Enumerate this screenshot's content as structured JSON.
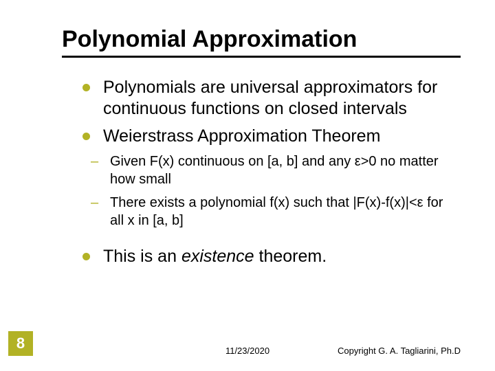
{
  "title": "Polynomial Approximation",
  "bullets": {
    "item1": "Polynomials are universal approximators for continuous functions on closed intervals",
    "item2": "Weierstrass Approximation Theorem",
    "sub1a": "Given F(x) continuous on [a, b] and any ",
    "sub1b": ">0 no matter how small",
    "sub2a": "There exists a polynomial f(x) such that |F(x)-f(x)|<",
    "sub2b": " for all x in [a, b]",
    "item3a": "This is an ",
    "item3b": "existence",
    "item3c": " theorem."
  },
  "epsilon": "ε",
  "page_number": "8",
  "footer": {
    "date": "11/23/2020",
    "copyright": "Copyright G. A. Tagliarini, Ph.D"
  },
  "colors": {
    "accent": "#b2b225",
    "text": "#000000",
    "background": "#ffffff"
  },
  "typography": {
    "title_fontsize": 34,
    "main_fontsize": 25,
    "sub_fontsize": 20,
    "footer_fontsize": 13,
    "font_family": "Arial"
  }
}
